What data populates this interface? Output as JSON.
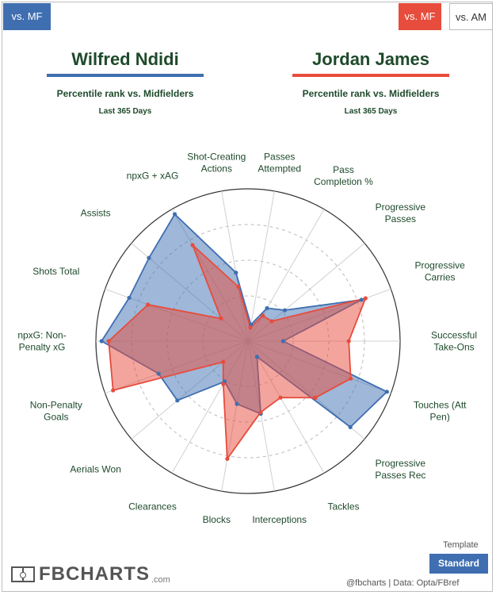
{
  "tabs": {
    "left": "vs. MF",
    "right_mf": "vs. MF",
    "right_am": "vs. AM"
  },
  "players": {
    "left": {
      "name": "Wilfred Ndidi",
      "subtitle": "Percentile rank vs. Midfielders",
      "period": "Last 365 Days",
      "color": "#3f6fb1"
    },
    "right": {
      "name": "Jordan James",
      "subtitle": "Percentile rank vs. Midfielders",
      "period": "Last 365 Days",
      "color": "#e74c3c"
    }
  },
  "chart_data": {
    "type": "radar",
    "range": [
      0,
      100
    ],
    "axes": [
      "Passes Attempted",
      "Pass Completion %",
      "Progressive Passes",
      "Progressive Carries",
      "Successful Take-Ons",
      "Touches (Att Pen)",
      "Progressive Passes Rec",
      "Tackles",
      "Interceptions",
      "Blocks",
      "Clearances",
      "Aerials Won",
      "Non-Penalty Goals",
      "npxG: Non-Penalty xG",
      "Shots Total",
      "Assists",
      "npxG + xAG",
      "Shot-Creating Actions"
    ],
    "axis_label_lines": [
      [
        "Passes",
        "Attempted"
      ],
      [
        "Pass",
        "Completion %"
      ],
      [
        "Progressive",
        "Passes"
      ],
      [
        "Progressive",
        "Carries"
      ],
      [
        "Successful",
        "Take-Ons"
      ],
      [
        "Touches (Att",
        "Pen)"
      ],
      [
        "Progressive",
        "Passes Rec"
      ],
      [
        "Tackles"
      ],
      [
        "Interceptions"
      ],
      [
        "Blocks"
      ],
      [
        "Clearances"
      ],
      [
        "Aerials Won"
      ],
      [
        "Non-Penalty",
        "Goals"
      ],
      [
        "npxG: Non-",
        "Penalty xG"
      ],
      [
        "Shots Total"
      ],
      [
        "Assists"
      ],
      [
        "npxG + xAG"
      ],
      [
        "Shot-Creating",
        "Actions"
      ]
    ],
    "series": [
      {
        "name": "Wilfred Ndidi",
        "color": "#3f6fb1",
        "values": [
          5,
          20,
          27,
          78,
          18,
          97,
          87,
          6,
          45,
          38,
          26,
          58,
          60,
          96,
          82,
          84,
          96,
          42
        ]
      },
      {
        "name": "Jordan James",
        "color": "#e74c3c",
        "values": [
          3,
          14,
          15,
          81,
          64,
          70,
          55,
          39,
          44,
          77,
          28,
          16,
          94,
          91,
          68,
          18,
          71,
          32
        ]
      }
    ]
  },
  "footer": {
    "template_label": "Template",
    "standard_button": "Standard",
    "logo_text": "FBCHARTS",
    "logo_suffix": ".com",
    "credits": "@fbcharts | Data: Opta/FBref"
  }
}
